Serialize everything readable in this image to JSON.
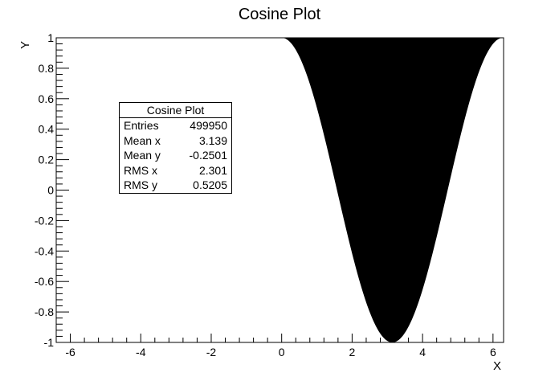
{
  "chart_data": {
    "type": "scatter",
    "title": "Cosine Plot",
    "xlabel": "X",
    "ylabel": "Y",
    "xlim": [
      -6.4,
      6.3
    ],
    "ylim": [
      -1,
      1
    ],
    "x_ticks": [
      -6,
      -4,
      -2,
      0,
      2,
      4,
      6
    ],
    "y_ticks": [
      -1,
      -0.8,
      -0.6,
      -0.4,
      -0.2,
      0,
      0.2,
      0.4,
      0.6,
      0.8,
      1
    ],
    "x_tick_labels": [
      "-6",
      "-4",
      "-2",
      "0",
      "2",
      "4",
      "6"
    ],
    "y_tick_labels": [
      "-1",
      "-0.8",
      "-0.6",
      "-0.4",
      "-0.2",
      "0",
      "0.2",
      "0.4",
      "0.6",
      "0.8",
      "1"
    ],
    "filled_region": {
      "x_range": [
        0,
        6.283
      ],
      "lower": "y = cos(x)",
      "upper": 1,
      "color": "#000000"
    },
    "stats_box": {
      "title": "Cosine Plot",
      "rows": [
        {
          "label": "Entries",
          "value": "499950"
        },
        {
          "label": "Mean x",
          "value": "3.139"
        },
        {
          "label": "Mean y",
          "value": "-0.2501"
        },
        {
          "label": "RMS x",
          "value": "2.301"
        },
        {
          "label": "RMS y",
          "value": "0.5205"
        }
      ]
    },
    "grid": false,
    "background": "#ffffff"
  }
}
